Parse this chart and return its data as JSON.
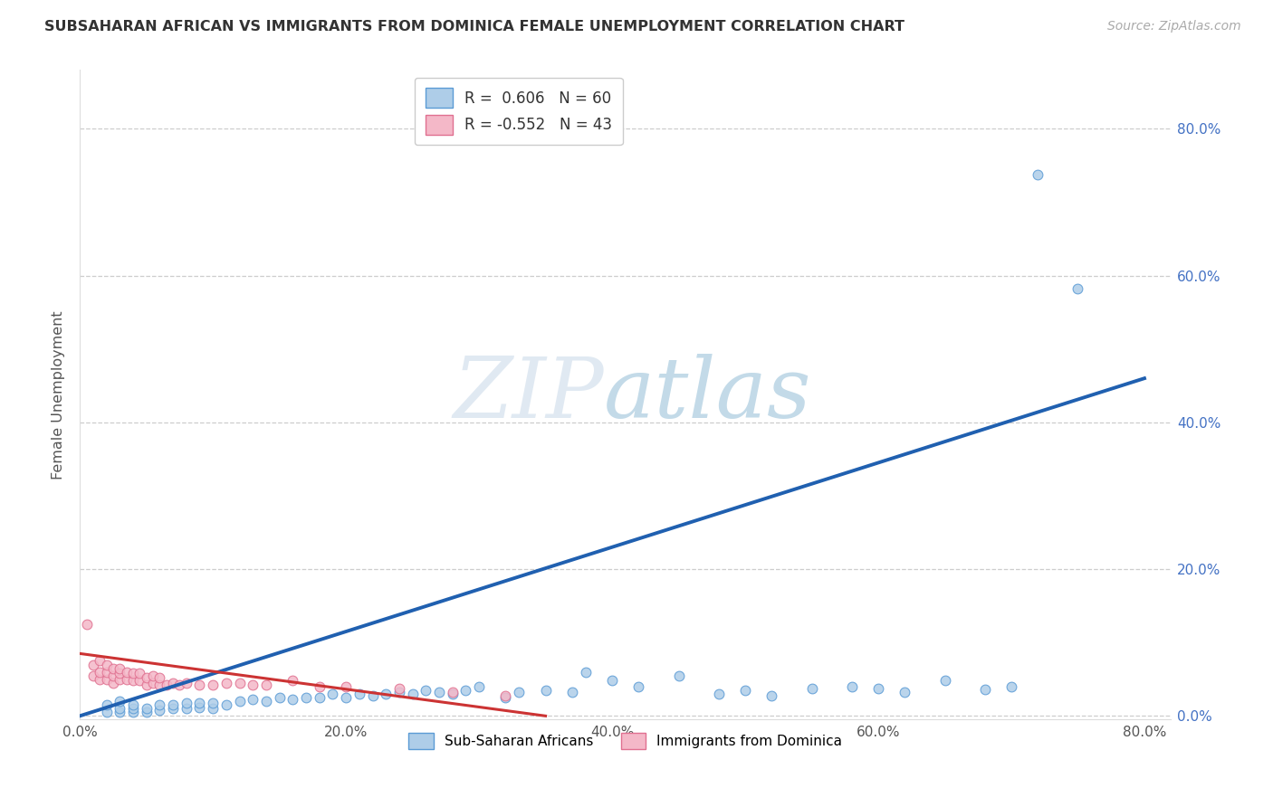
{
  "title": "SUBSAHARAN AFRICAN VS IMMIGRANTS FROM DOMINICA FEMALE UNEMPLOYMENT CORRELATION CHART",
  "source": "Source: ZipAtlas.com",
  "ylabel": "Female Unemployment",
  "xlim": [
    0,
    0.82
  ],
  "ylim": [
    -0.005,
    0.88
  ],
  "xticks": [
    0.0,
    0.2,
    0.4,
    0.6,
    0.8
  ],
  "yticks": [
    0.0,
    0.2,
    0.4,
    0.6,
    0.8
  ],
  "watermark_zip": "ZIP",
  "watermark_atlas": "atlas",
  "legend_r1": "R =  0.606",
  "legend_n1": "N = 60",
  "legend_r2": "R = -0.552",
  "legend_n2": "N = 43",
  "blue_color": "#aecde8",
  "blue_edge": "#5b9bd5",
  "pink_color": "#f4b8c8",
  "pink_edge": "#e07090",
  "blue_line_color": "#2060b0",
  "pink_line_color": "#cc3333",
  "blue_scatter_x": [
    0.02,
    0.02,
    0.03,
    0.03,
    0.03,
    0.04,
    0.04,
    0.04,
    0.05,
    0.05,
    0.06,
    0.06,
    0.07,
    0.07,
    0.08,
    0.08,
    0.09,
    0.09,
    0.1,
    0.1,
    0.11,
    0.12,
    0.13,
    0.14,
    0.15,
    0.16,
    0.17,
    0.18,
    0.19,
    0.2,
    0.21,
    0.22,
    0.23,
    0.24,
    0.25,
    0.26,
    0.27,
    0.28,
    0.29,
    0.3,
    0.32,
    0.33,
    0.35,
    0.37,
    0.38,
    0.4,
    0.42,
    0.45,
    0.48,
    0.5,
    0.52,
    0.55,
    0.58,
    0.6,
    0.62,
    0.65,
    0.68,
    0.7,
    0.72,
    0.75
  ],
  "blue_scatter_y": [
    0.005,
    0.015,
    0.005,
    0.01,
    0.02,
    0.005,
    0.01,
    0.015,
    0.005,
    0.01,
    0.008,
    0.015,
    0.01,
    0.015,
    0.01,
    0.018,
    0.012,
    0.018,
    0.01,
    0.018,
    0.015,
    0.02,
    0.022,
    0.02,
    0.025,
    0.022,
    0.025,
    0.025,
    0.03,
    0.025,
    0.03,
    0.028,
    0.03,
    0.032,
    0.03,
    0.035,
    0.032,
    0.03,
    0.035,
    0.04,
    0.025,
    0.032,
    0.035,
    0.032,
    0.06,
    0.048,
    0.04,
    0.055,
    0.03,
    0.035,
    0.028,
    0.038,
    0.04,
    0.038,
    0.032,
    0.048,
    0.036,
    0.04,
    0.738,
    0.582
  ],
  "pink_scatter_x": [
    0.005,
    0.01,
    0.01,
    0.015,
    0.015,
    0.015,
    0.02,
    0.02,
    0.02,
    0.025,
    0.025,
    0.025,
    0.03,
    0.03,
    0.03,
    0.035,
    0.035,
    0.04,
    0.04,
    0.045,
    0.045,
    0.05,
    0.05,
    0.055,
    0.055,
    0.06,
    0.06,
    0.065,
    0.07,
    0.075,
    0.08,
    0.09,
    0.1,
    0.11,
    0.12,
    0.13,
    0.14,
    0.16,
    0.18,
    0.2,
    0.24,
    0.28,
    0.32
  ],
  "pink_scatter_y": [
    0.125,
    0.055,
    0.07,
    0.05,
    0.06,
    0.075,
    0.05,
    0.06,
    0.07,
    0.045,
    0.055,
    0.065,
    0.05,
    0.058,
    0.065,
    0.05,
    0.06,
    0.048,
    0.058,
    0.048,
    0.058,
    0.042,
    0.052,
    0.045,
    0.055,
    0.042,
    0.052,
    0.042,
    0.045,
    0.042,
    0.045,
    0.042,
    0.042,
    0.045,
    0.045,
    0.042,
    0.042,
    0.048,
    0.04,
    0.04,
    0.038,
    0.032,
    0.028
  ],
  "blue_line_x": [
    0.0,
    0.8
  ],
  "blue_line_y": [
    0.0,
    0.46
  ],
  "pink_line_x": [
    0.0,
    0.35
  ],
  "pink_line_y": [
    0.085,
    0.0
  ],
  "background_color": "#ffffff",
  "grid_color": "#c8c8c8",
  "marker_size": 60,
  "title_fontsize": 11.5,
  "legend_fontsize": 12,
  "tick_fontsize": 11
}
